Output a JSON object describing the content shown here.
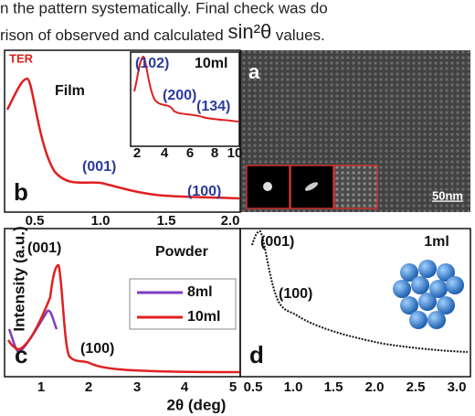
{
  "text_lines": [
    {
      "parts": [
        "n the pattern systematically. Final check was do"
      ]
    },
    {
      "parts": [
        "rison of observed and calculated ",
        "sin²θ",
        " values."
      ]
    }
  ],
  "figure": {
    "y_label": "Intensity (a.u.)",
    "x_label": "2θ (deg)",
    "panel_a": {
      "label": "a",
      "scale_bar": "50nm"
    },
    "panel_b": {
      "label": "b",
      "corner_text": "TER",
      "sample": "Film",
      "peaks": [
        "(001)",
        "(100)"
      ],
      "xticks": [
        "0.5",
        "1.0",
        "1.5",
        "2.0"
      ],
      "inset": {
        "title": "10ml",
        "peaks": [
          "(102)",
          "(200)",
          "(134)"
        ],
        "xticks": [
          "2",
          "4",
          "6",
          "8",
          "10"
        ]
      }
    },
    "panel_c": {
      "label": "c",
      "sample": "Powder",
      "peaks": [
        "(001)",
        "(100)"
      ],
      "legend": [
        "8ml",
        "10ml"
      ],
      "xticks": [
        "1",
        "2",
        "3",
        "4",
        "5"
      ]
    },
    "panel_d": {
      "label": "d",
      "sample": "1ml",
      "peaks": [
        "(001)",
        "(100)"
      ],
      "xticks": [
        "0.5",
        "1.0",
        "1.5",
        "2.0",
        "2.5",
        "3.0"
      ]
    }
  }
}
